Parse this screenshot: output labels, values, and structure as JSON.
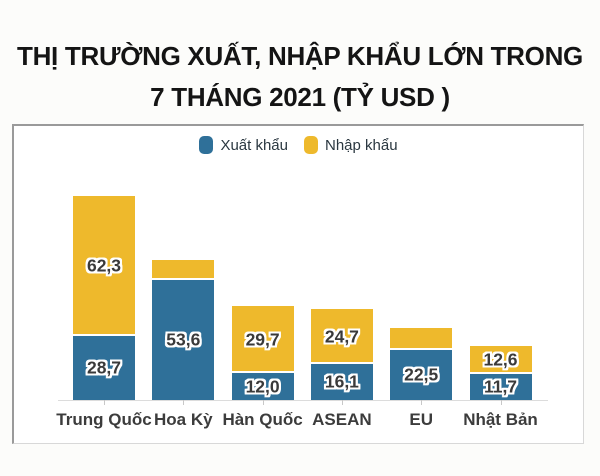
{
  "title": {
    "line1": "THỊ TRƯỜNG XUẤT, NHẬP KHẨU LỚN TRONG",
    "line2": "7 THÁNG 2021 (TỶ USD )"
  },
  "legend": [
    {
      "label": "Xuất khẩu",
      "color": "#2f7099"
    },
    {
      "label": "Nhập khẩu",
      "color": "#eeb92c"
    }
  ],
  "chart_data": {
    "type": "bar",
    "stacked": true,
    "title": "THỊ TRƯỜNG XUẤT, NHẬP KHẨU LỚN TRONG 7 THÁNG 2021 (TỶ USD)",
    "xlabel": "",
    "ylabel": "",
    "unit": "tỷ USD",
    "legend_position": "top",
    "grid": false,
    "ylim": [
      0,
      95
    ],
    "categories": [
      "Trung Quốc",
      "Hoa Kỳ",
      "Hàn Quốc",
      "ASEAN",
      "EU",
      "Nhật Bản"
    ],
    "series": [
      {
        "name": "Xuất khẩu",
        "color": "#2f7099",
        "values": [
          28.7,
          53.6,
          12.0,
          16.1,
          22.5,
          11.7
        ],
        "data_labels": [
          "28,7",
          "53,6",
          "12,0",
          "16,1",
          "22,5",
          "11,7"
        ]
      },
      {
        "name": "Nhập khẩu",
        "color": "#eeb92c",
        "values": [
          62.3,
          9.0,
          29.7,
          24.7,
          9.7,
          12.6
        ],
        "data_labels": [
          "62,3",
          "",
          "29,7",
          "24,7",
          "",
          "12,6"
        ]
      }
    ],
    "axis_line_color": "#dcdcdc",
    "value_label_color": "#3a3a3a"
  }
}
